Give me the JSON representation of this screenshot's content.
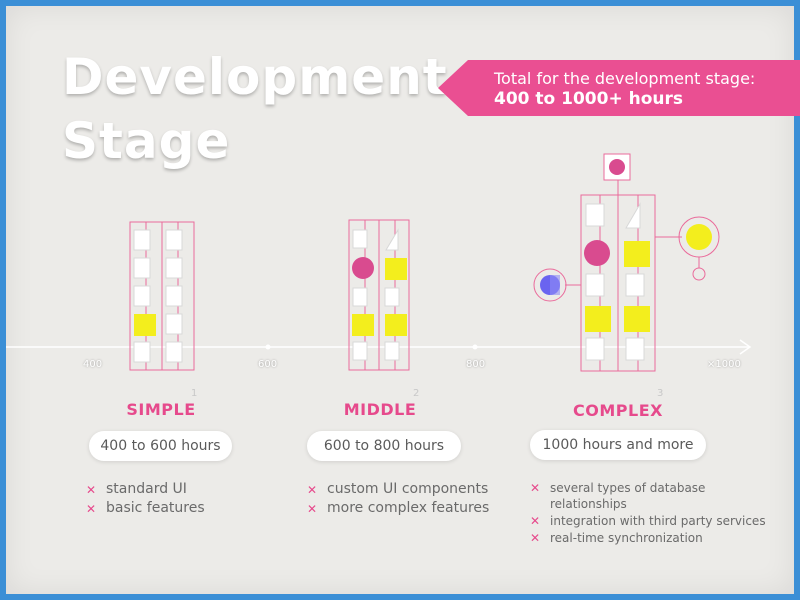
{
  "title": {
    "line1": "Development",
    "line2": "Stage"
  },
  "banner": {
    "line1": "Total for the development stage:",
    "line2": "400 to 1000+ hours"
  },
  "axis": {
    "ticks": [
      "400",
      "600",
      "800",
      "×1000"
    ]
  },
  "stages": [
    {
      "number": "1",
      "name": "SIMPLE",
      "hours": "400 to 600 hours",
      "features": [
        "standard UI",
        "basic features"
      ]
    },
    {
      "number": "2",
      "name": "MIDDLE",
      "hours": "600 to 800 hours",
      "features": [
        "custom UI components",
        "more complex features"
      ]
    },
    {
      "number": "3",
      "name": "COMPLEX",
      "hours": "1000 hours and more",
      "features": [
        "several types of database",
        "relationships",
        "integration with third party services",
        "real-time synchronization"
      ]
    }
  ],
  "colors": {
    "accent": "#ea4f92",
    "yellow": "#f3ee1d",
    "blue": "#6a64f0",
    "background": "#ecebe8",
    "frame": "#3b8fd6"
  }
}
